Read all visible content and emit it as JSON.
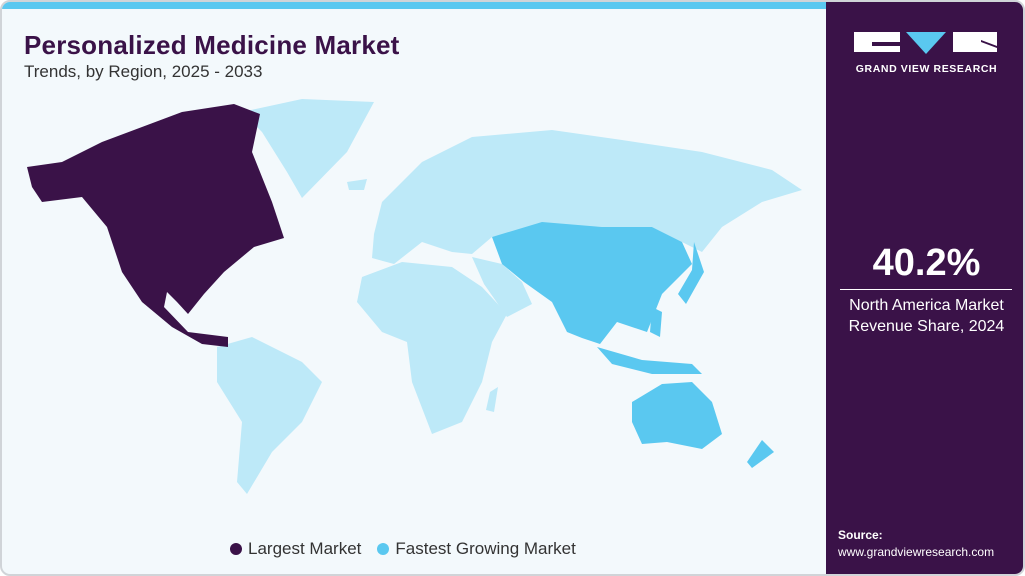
{
  "header": {
    "title": "Personalized Medicine Market",
    "subtitle": "Trends, by Region, 2025 - 2033"
  },
  "colors": {
    "largest": "#3a1248",
    "fastest": "#5ac8f0",
    "other": "#bde9f8",
    "accent": "#5ac8f0"
  },
  "map": {
    "largest_market": "North America",
    "fastest_growing_market": "Asia Pacific"
  },
  "legend": [
    {
      "label": "Largest Market",
      "color": "#3a1248"
    },
    {
      "label": "Fastest Growing Market",
      "color": "#5ac8f0"
    }
  ],
  "sidebar": {
    "logo_text": "GRAND VIEW RESEARCH",
    "stat_value": "40.2%",
    "stat_label_1": "North America Market",
    "stat_label_2": "Revenue Share, 2024",
    "source_label": "Source:",
    "source_url": "www.grandviewresearch.com"
  }
}
